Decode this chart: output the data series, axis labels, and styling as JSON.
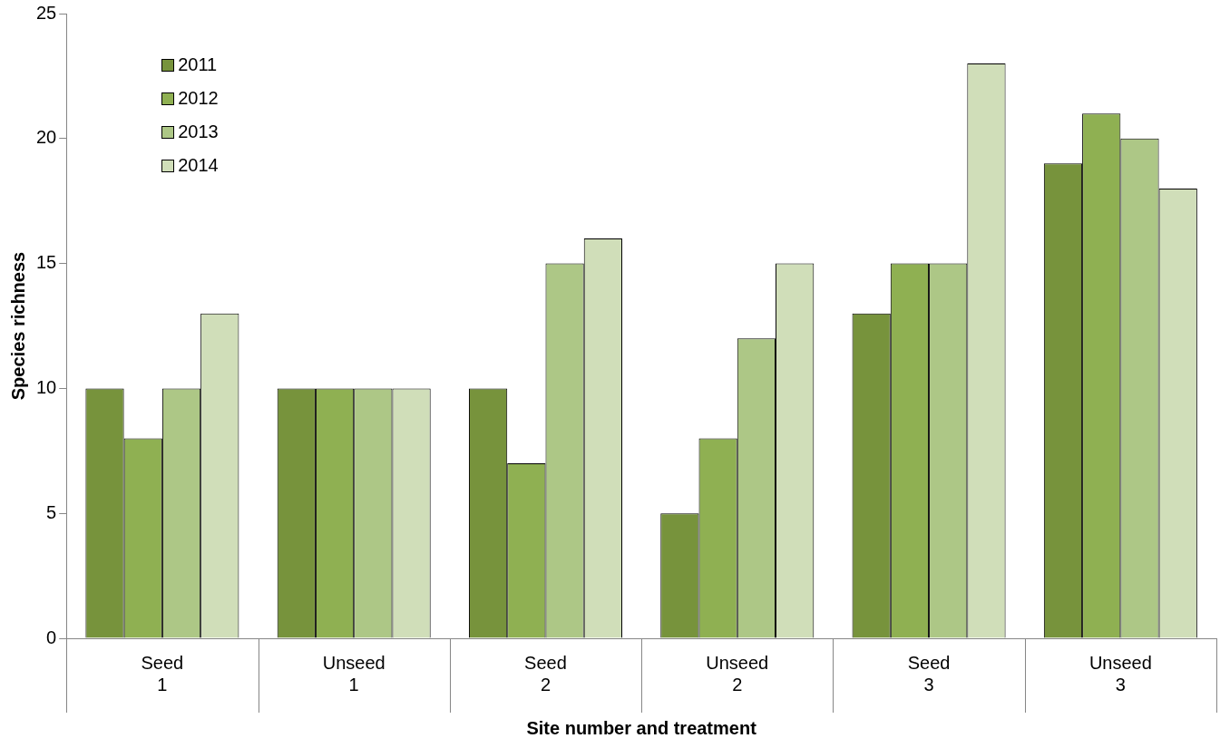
{
  "chart_data": {
    "type": "bar",
    "xlabel": "Site number and treatment",
    "ylabel": "Species richness",
    "categories": [
      "Seed\n1",
      "Unseed\n1",
      "Seed\n2",
      "Unseed\n2",
      "Seed\n3",
      "Unseed\n3"
    ],
    "series": [
      {
        "name": "2011",
        "color": "#77933c",
        "values": [
          10,
          10,
          10,
          5,
          13,
          19
        ]
      },
      {
        "name": "2012",
        "color": "#8fb052",
        "values": [
          8,
          10,
          7,
          8,
          15,
          21
        ]
      },
      {
        "name": "2013",
        "color": "#adc786",
        "values": [
          10,
          10,
          15,
          12,
          15,
          20
        ]
      },
      {
        "name": "2014",
        "color": "#d0deb9",
        "values": [
          13,
          10,
          16,
          15,
          23,
          18
        ]
      }
    ],
    "ylim": [
      0,
      25
    ],
    "yticks": [
      0,
      5,
      10,
      15,
      20,
      25
    ],
    "grid": false,
    "legend": "top left"
  }
}
